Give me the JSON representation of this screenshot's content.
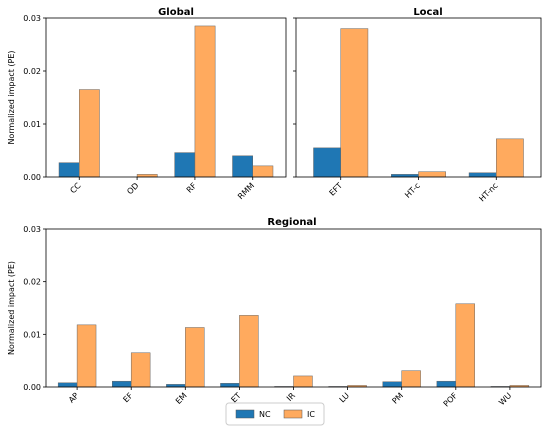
{
  "colors": {
    "NC": "#1f77b4",
    "IC": "#ffaa5e"
  },
  "legend": {
    "items": [
      "NC",
      "IC"
    ]
  },
  "chart_data": [
    {
      "type": "bar",
      "title": "Global",
      "ylabel": "Normalized impact (PE)",
      "ylim": [
        0,
        0.03
      ],
      "yticks": [
        "0.00",
        "0.01",
        "0.02",
        "0.03"
      ],
      "categories": [
        "CC",
        "OD",
        "RF",
        "RMM"
      ],
      "series": [
        {
          "name": "NC",
          "values": [
            0.0027,
            0.0,
            0.0046,
            0.004
          ]
        },
        {
          "name": "IC",
          "values": [
            0.0165,
            0.0005,
            0.0285,
            0.0021
          ]
        }
      ]
    },
    {
      "type": "bar",
      "title": "Local",
      "ylim": [
        0,
        0.03
      ],
      "yticks": [],
      "categories": [
        "EFT",
        "HT-c",
        "HT-nc"
      ],
      "series": [
        {
          "name": "NC",
          "values": [
            0.0055,
            0.0005,
            0.0008
          ]
        },
        {
          "name": "IC",
          "values": [
            0.028,
            0.001,
            0.0072
          ]
        }
      ]
    },
    {
      "type": "bar",
      "title": "Regional",
      "ylabel": "Normalized impact (PE)",
      "ylim": [
        0,
        0.03
      ],
      "yticks": [
        "0.00",
        "0.01",
        "0.02",
        "0.03"
      ],
      "categories": [
        "AP",
        "EF",
        "EM",
        "ET",
        "IR",
        "LU",
        "PM",
        "POF",
        "WU"
      ],
      "series": [
        {
          "name": "NC",
          "values": [
            0.0008,
            0.0011,
            0.0005,
            0.0007,
            0.0001,
            0.0001,
            0.001,
            0.0011,
            0.0001
          ]
        },
        {
          "name": "IC",
          "values": [
            0.0118,
            0.0065,
            0.0113,
            0.0136,
            0.0021,
            0.0003,
            0.0031,
            0.0158,
            0.0003
          ]
        }
      ]
    }
  ]
}
